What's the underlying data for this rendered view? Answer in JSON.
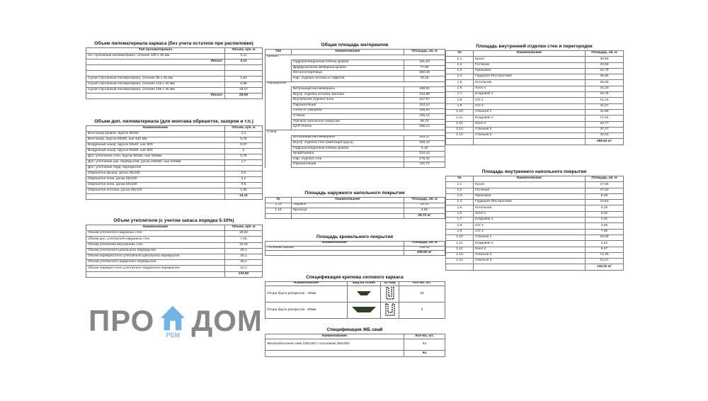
{
  "watermark": {
    "left": "ПРО",
    "right": "ДОМ",
    "sub": "РЕМ",
    "color": "#4a9ee0"
  },
  "tables": [
    {
      "id": "lumber-frame",
      "title": "Объем пиломатериала каркаса (без учета остатков при распиловке)",
      "columns": [
        "Тип пиломатериала",
        "Объем, куб. м"
      ],
      "rows": [
        {
          "cells": [
            "Не строганный пиломатериал, сечение 100 х 25 мм",
            "0,11"
          ]
        },
        {
          "cells": [
            "Итого:",
            "0,11"
          ],
          "total": true,
          "label": true
        },
        {
          "cells": [
            "",
            ""
          ]
        },
        {
          "cells": [
            "",
            ""
          ]
        },
        {
          "cells": [
            "Сухой строганный пиломатериал, сечение 95 х 45 мм",
            "1,54"
          ]
        },
        {
          "cells": [
            "Сухой строганный пиломатериал, сечение 145 х 45 мм",
            "9,98"
          ]
        },
        {
          "cells": [
            "Сухой строганный пиломатериал, сечение 195 х 45 мм",
            "18,17"
          ]
        },
        {
          "cells": [
            "Итого:",
            "29,69"
          ],
          "total": true,
          "label": true
        }
      ]
    },
    {
      "id": "lumber-extra",
      "title": "Объем доп. пиломатериала (для монтажа обрешеток, зазоров и т.п.)",
      "columns": [
        "Наименование",
        "Объем, куб. м"
      ],
      "rows": [
        {
          "cells": [
            "Вентзазор кровли, брусок 50х50",
            "1,4"
          ]
        },
        {
          "cells": [
            "Вентзазор, брусок 50х50, шаг 640 мм",
            "0,76"
          ]
        },
        {
          "cells": [
            "Воздушный зазор, брусок 30х40, шаг 500",
            "0,07"
          ]
        },
        {
          "cells": [
            "Воздушный зазор, брусок 50х50, шаг 500",
            "2"
          ]
        },
        {
          "cells": [
            "Доп. утепление стен, брусок 50х50, шаг 640мм",
            "0,76"
          ]
        },
        {
          "cells": [
            "Доп. утепление цок. перекрытия, доска 100х50, шаг 640мм",
            "1,7"
          ]
        },
        {
          "cells": [
            "Доп. утепление черд. перекрытия",
            "-"
          ]
        },
        {
          "cells": [
            "Обрешетка крыши, доска 25х100",
            "2,6"
          ]
        },
        {
          "cells": [
            "Обрешетка пола, доска 25х100",
            "2,1"
          ]
        },
        {
          "cells": [
            "Обрешетка пола, доска 50х100",
            "0,8"
          ]
        },
        {
          "cells": [
            "Обрешетка потолка, доска 25х100",
            "1,92"
          ]
        },
        {
          "cells": [
            "",
            "14,11"
          ],
          "total": true
        }
      ]
    },
    {
      "id": "insulation",
      "title": "Объем утеплителя (с учетом запаса порядка 5-10%)",
      "columns": [
        "Наименование",
        "Объем, куб. м"
      ],
      "rows": [
        {
          "cells": [
            "Объем утеплителя наружных стен",
            "19,52"
          ]
        },
        {
          "cells": [
            "Объем доп. утеплителя наружных стен",
            "7,65"
          ]
        },
        {
          "cells": [
            "Объем утепления внутренних стен",
            "19,25"
          ]
        },
        {
          "cells": [
            "Объем утеплителя цокольного перекрытия",
            "28,1"
          ]
        },
        {
          "cells": [
            "Объем перекрестного утеплителя цокольного перекрытия",
            "15,1"
          ]
        },
        {
          "cells": [
            "Объем утеплителя чердачного перекрытия",
            "28,2"
          ]
        },
        {
          "cells": [
            "Объем перекрестного утеплителя чердачного перекрытия",
            "16,1"
          ]
        },
        {
          "cells": [
            "",
            "133,92"
          ],
          "total": true
        }
      ]
    },
    {
      "id": "materials-area",
      "title": "Общая площадь материалов",
      "columns": [
        "Тип",
        "Наименование",
        "Площадь, кв. м"
      ],
      "groups": [
        {
          "type": "Крыша",
          "items": [
            [
              "Гидроизоляционная плёнка кровли",
              "181,63"
            ],
            [
              "Диффузионная мембрана кровли",
              "77,88"
            ],
            [
              "Металлочерепица",
              "260,29"
            ],
            [
              "Нар. отделка потолка и софитов",
              "78,16"
            ]
          ]
        },
        {
          "type": "Перекрытие",
          "items": [
            [
              "Ветрозащитная мембрана",
              "168,92"
            ],
            [
              "Внутр. отделка потолка, вагонка",
              "144,99"
            ],
            [
              "Внутренняя отделка пола",
              "147,97"
            ],
            [
              "Пароизоляция",
              "153,14"
            ],
            [
              "Сетка от грызунов",
              "168,92"
            ],
            [
              "Стяжка",
              "155,12"
            ],
            [
              "Уличное напольное покрытие",
              "29,70"
            ],
            [
              "ЦСП Плиты",
              "155,12"
            ]
          ]
        },
        {
          "type": "Стена",
          "items": [
            [
              "Ветрозащитная мембрана",
              "153,37"
            ],
            [
              "Внутр. отделка стен (имитация бруса)",
              "408,44"
            ],
            [
              "Гидроизоляционная плёнка кровли",
              "8,18"
            ],
            [
              "Крафтбумага",
              "312,10"
            ],
            [
              "Нар. отделка стен",
              "175,32"
            ],
            [
              "Пароизоляция",
              "116,73"
            ]
          ]
        }
      ]
    },
    {
      "id": "outdoor-floor",
      "title": "Площадь наружного напольного покрытия",
      "columns": [
        "№",
        "Наименование",
        "Площадь, кв. м"
      ],
      "rows": [
        {
          "cells": [
            "1.15",
            "Терраса",
            "25,20"
          ]
        },
        {
          "cells": [
            "1.16",
            "Крыльцо",
            "4,50"
          ]
        },
        {
          "cells": [
            "",
            "",
            "29,70 м²"
          ],
          "total": true
        }
      ]
    },
    {
      "id": "roof-area",
      "title": "Площадь кровельного покрытия",
      "columns": [
        "Наименование",
        "Площадь, кв. м"
      ],
      "rows": [
        {
          "cells": [
            "Основная крыша",
            "259,50"
          ]
        },
        {
          "cells": [
            "",
            "259,50 м²"
          ],
          "total": true
        }
      ]
    },
    {
      "id": "fasteners",
      "title": "Спецификация крепежа силового каркаса",
      "columns": [
        "Наименование",
        "Вид на плане",
        "3D вид",
        "Кол-во, шт."
      ],
      "rows": [
        {
          "cells": [
            "Опора бруса раскрытая - 45мм",
            "plan-45-icon",
            "bracket-3d-45-icon",
            "18"
          ]
        },
        {
          "cells": [
            "Опора бруса раскрытая - 90мм",
            "plan-90-icon",
            "bracket-3d-90-icon",
            "2"
          ]
        }
      ]
    },
    {
      "id": "piles",
      "title": "Спецификация ЖБ свай",
      "columns": [
        "Наименование",
        "Кол-во, шт."
      ],
      "rows": [
        {
          "cells": [
            "Железобетонная свая 150х150 с оголовком 250х250",
            "64"
          ]
        },
        {
          "cells": [
            "",
            "64"
          ],
          "total": true
        }
      ]
    },
    {
      "id": "wall-finish",
      "title": "Площадь внутренней отделки стен и перегородок",
      "columns": [
        "№",
        "Наименование",
        "Площадь, кв. м"
      ],
      "rows": [
        {
          "cells": [
            "1.1",
            "Кухня",
            "30,65"
          ]
        },
        {
          "cells": [
            "1.2",
            "Гостиная",
            "34,65"
          ]
        },
        {
          "cells": [
            "1.3",
            "Прихожая",
            "22,78"
          ]
        },
        {
          "cells": [
            "1.4",
            "Гардероб-Постирочная",
            "35,85"
          ]
        },
        {
          "cells": [
            "1.5",
            "Котельная",
            "25,65"
          ]
        },
        {
          "cells": [
            "1.6",
            "Холл 1",
            "24,43"
          ]
        },
        {
          "cells": [
            "1.7",
            "Кладовая 1",
            "16,76"
          ]
        },
        {
          "cells": [
            "1.8",
            "С/У 1",
            "21,19"
          ]
        },
        {
          "cells": [
            "1.9",
            "С/У 2",
            "31,57"
          ]
        },
        {
          "cells": [
            "1.10",
            "Спальня 1",
            "41,88"
          ]
        },
        {
          "cells": [
            "1.11",
            "Кладовая 2",
            "17,44"
          ]
        },
        {
          "cells": [
            "1.12",
            "Холл 2",
            "24,77"
          ]
        },
        {
          "cells": [
            "1.13",
            "Спальня 2",
            "37,37"
          ]
        },
        {
          "cells": [
            "1.14",
            "Спальня 3",
            "34,53"
          ]
        },
        {
          "cells": [
            "",
            "",
            "399,53 м²"
          ],
          "total": true
        }
      ]
    },
    {
      "id": "floor-finish",
      "title": "Площадь внутреннего напольного покрытия",
      "columns": [
        "№",
        "Наименование",
        "Площадь, кв. м"
      ],
      "rows": [
        {
          "cells": [
            "1.1",
            "Кухня",
            "17,58"
          ]
        },
        {
          "cells": [
            "1.2",
            "Гостиная",
            "27,63"
          ]
        },
        {
          "cells": [
            "1.3",
            "Прихожая",
            "6,49"
          ]
        },
        {
          "cells": [
            "1.4",
            "Гардероб-Постирочная",
            "10,63"
          ]
        },
        {
          "cells": [
            "1.5",
            "Котельная",
            "6,18"
          ]
        },
        {
          "cells": [
            "1.6",
            "Холл 1",
            "6,02"
          ]
        },
        {
          "cells": [
            "1.7",
            "Кладовая 1",
            "2,61"
          ]
        },
        {
          "cells": [
            "1.8",
            "С/У 1",
            "3,69"
          ]
        },
        {
          "cells": [
            "1.9",
            "С/У 2",
            "7,86"
          ]
        },
        {
          "cells": [
            "1.10",
            "Спальня 1",
            "19,39"
          ]
        },
        {
          "cells": [
            "1.11",
            "Кладовая 2",
            "2,51"
          ]
        },
        {
          "cells": [
            "1.12",
            "Холл 2",
            "6,47"
          ]
        },
        {
          "cells": [
            "1.13",
            "Спальня 2",
            "12,49"
          ]
        },
        {
          "cells": [
            "1.14",
            "Спальня 3",
            "12,47"
          ]
        },
        {
          "cells": [
            "",
            "",
            "142,02 м²"
          ],
          "total": true
        }
      ]
    }
  ]
}
